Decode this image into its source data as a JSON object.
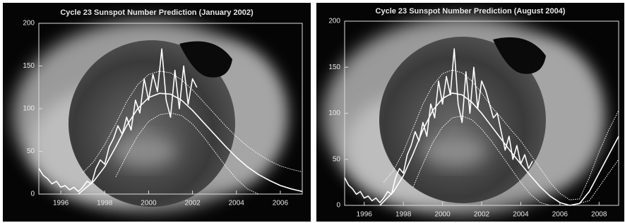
{
  "chart_data": [
    {
      "type": "line",
      "title": "Cycle 23 Sunspot Number Prediction (January 2002)",
      "xlim": [
        1995,
        2007
      ],
      "xticks": [
        1996,
        1998,
        2000,
        2002,
        2004,
        2006
      ],
      "ylim": [
        0,
        200
      ],
      "yticks": [
        0,
        50,
        100,
        150,
        200
      ],
      "series": [
        {
          "color": "#ffffff",
          "style": "solid",
          "x": [
            1995.0,
            1995.2,
            1995.4,
            1995.6,
            1995.8,
            1996.0,
            1996.2,
            1996.4,
            1996.6,
            1996.8,
            1997.0,
            1997.2,
            1997.4,
            1997.6,
            1997.8,
            1998.0,
            1998.2,
            1998.4,
            1998.6,
            1998.8,
            1999.0,
            1999.2,
            1999.4,
            1999.6,
            1999.8,
            2000.0,
            2000.2,
            2000.4,
            2000.6,
            2000.8,
            2001.0,
            2001.2,
            2001.4,
            2001.6,
            2001.8,
            2002.0,
            2002.2
          ],
          "values": [
            30,
            22,
            18,
            12,
            15,
            8,
            10,
            5,
            8,
            3,
            8,
            15,
            12,
            30,
            40,
            35,
            55,
            65,
            80,
            70,
            90,
            75,
            110,
            95,
            135,
            110,
            140,
            120,
            170,
            110,
            90,
            145,
            100,
            150,
            105,
            135,
            125
          ]
        },
        {
          "color": "#ffffff",
          "style": "solid",
          "x": [
            1996.8,
            1997.5,
            1998,
            1998.5,
            1999,
            1999.5,
            2000,
            2000.5,
            2001,
            2001.5,
            2002,
            2002.5,
            2003,
            2003.5,
            2004,
            2004.5,
            2005,
            2005.5,
            2006,
            2006.5,
            2007
          ],
          "values": [
            0,
            15,
            32,
            55,
            80,
            100,
            113,
            118,
            117,
            110,
            98,
            84,
            70,
            56,
            43,
            32,
            23,
            16,
            10,
            6,
            3
          ]
        },
        {
          "color": "#ffffff",
          "style": "dotted",
          "x": [
            1997,
            1997.5,
            1998,
            1998.5,
            1999,
            1999.5,
            2000,
            2000.5,
            2001,
            2001.5,
            2002,
            2002.5,
            2003,
            2003.5,
            2004,
            2004.5,
            2005,
            2005.5,
            2006,
            2006.5,
            2007
          ],
          "values": [
            25,
            38,
            58,
            82,
            108,
            128,
            140,
            144,
            142,
            134,
            122,
            108,
            94,
            80,
            67,
            56,
            47,
            39,
            33,
            29,
            26
          ]
        },
        {
          "color": "#ffffff",
          "style": "dotted",
          "x": [
            1998.5,
            1999,
            1999.5,
            2000,
            2000.5,
            2001,
            2001.5,
            2002,
            2002.5,
            2003,
            2003.5,
            2004,
            2004.5,
            2005
          ],
          "values": [
            20,
            45,
            68,
            85,
            93,
            95,
            92,
            82,
            67,
            50,
            33,
            18,
            6,
            0
          ]
        }
      ]
    },
    {
      "type": "line",
      "title": "Cycle 23 Sunspot Number Prediction (August 2004)",
      "xlim": [
        1995,
        2009
      ],
      "xticks": [
        1996,
        1998,
        2000,
        2002,
        2004,
        2006,
        2008
      ],
      "ylim": [
        0,
        200
      ],
      "yticks": [
        0,
        50,
        100,
        150,
        200
      ],
      "series": [
        {
          "color": "#ffffff",
          "style": "solid",
          "x": [
            1995.0,
            1995.2,
            1995.4,
            1995.6,
            1995.8,
            1996.0,
            1996.2,
            1996.4,
            1996.6,
            1996.8,
            1997.0,
            1997.2,
            1997.4,
            1997.6,
            1997.8,
            1998.0,
            1998.2,
            1998.4,
            1998.6,
            1998.8,
            1999.0,
            1999.2,
            1999.4,
            1999.6,
            1999.8,
            2000.0,
            2000.2,
            2000.4,
            2000.6,
            2000.8,
            2001.0,
            2001.2,
            2001.4,
            2001.6,
            2001.8,
            2002.0,
            2002.2,
            2002.4,
            2002.6,
            2002.8,
            2003.0,
            2003.2,
            2003.4,
            2003.6,
            2003.8,
            2004.0,
            2004.2,
            2004.4,
            2004.6
          ],
          "values": [
            30,
            22,
            18,
            12,
            15,
            8,
            10,
            5,
            8,
            3,
            8,
            15,
            12,
            30,
            40,
            35,
            55,
            65,
            80,
            70,
            90,
            75,
            110,
            95,
            135,
            110,
            140,
            120,
            170,
            110,
            90,
            145,
            100,
            150,
            105,
            135,
            125,
            110,
            95,
            100,
            80,
            60,
            75,
            50,
            65,
            45,
            55,
            40,
            48
          ]
        },
        {
          "color": "#ffffff",
          "style": "solid",
          "x": [
            1996.8,
            1997.5,
            1998,
            1998.5,
            1999,
            1999.5,
            2000,
            2000.5,
            2001,
            2001.5,
            2002,
            2002.5,
            2003,
            2003.5,
            2004,
            2004.5,
            2005,
            2005.5,
            2006,
            2006.5,
            2007,
            2007.5,
            2008,
            2008.5,
            2009
          ],
          "values": [
            0,
            15,
            32,
            56,
            82,
            103,
            116,
            122,
            120,
            112,
            100,
            86,
            72,
            58,
            45,
            32,
            20,
            10,
            3,
            0,
            2,
            15,
            35,
            55,
            75
          ]
        },
        {
          "color": "#ffffff",
          "style": "dotted",
          "x": [
            1997,
            1997.5,
            1998,
            1998.5,
            1999,
            1999.5,
            2000,
            2000.5,
            2001,
            2001.5,
            2002,
            2002.5,
            2003,
            2003.5,
            2004,
            2004.5,
            2005,
            2005.5,
            2006,
            2006.5,
            2007,
            2007.5,
            2008,
            2008.5,
            2009
          ],
          "values": [
            25,
            38,
            58,
            84,
            110,
            130,
            143,
            147,
            144,
            135,
            122,
            107,
            95,
            82,
            70,
            55,
            40,
            25,
            13,
            6,
            7,
            30,
            58,
            82,
            103
          ]
        },
        {
          "color": "#ffffff",
          "style": "dotted",
          "x": [
            1998.5,
            1999,
            1999.5,
            2000,
            2000.5,
            2001,
            2001.5,
            2002,
            2002.5,
            2003,
            2003.5,
            2004,
            2004.5,
            2005,
            2005.5,
            2006.5,
            2007.5,
            2008,
            2008.5,
            2009
          ],
          "values": [
            20,
            45,
            68,
            85,
            95,
            97,
            93,
            83,
            70,
            55,
            40,
            25,
            12,
            3,
            0,
            0,
            5,
            20,
            35,
            50
          ]
        }
      ]
    }
  ]
}
